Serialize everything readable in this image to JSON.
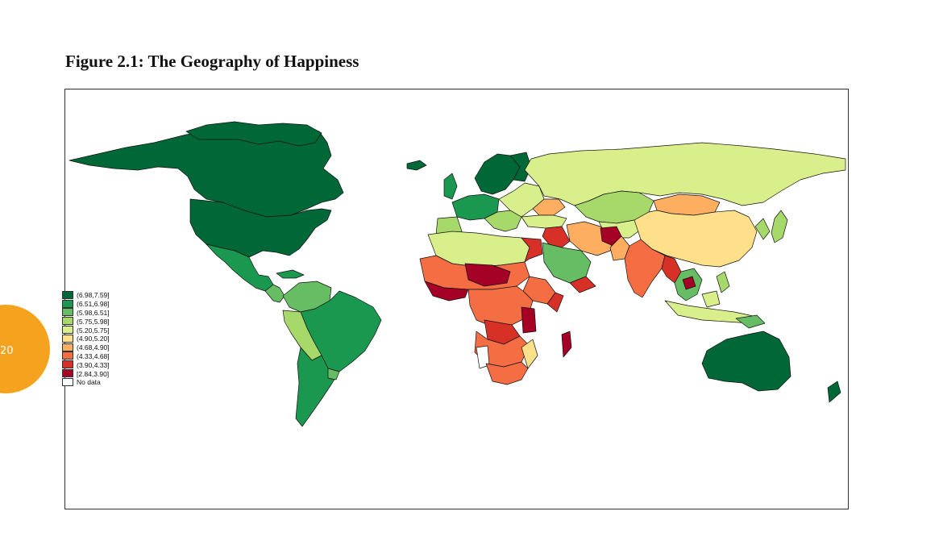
{
  "page": {
    "number": "20"
  },
  "figure": {
    "title": "Figure 2.1: The Geography of Happiness"
  },
  "legend": {
    "items": [
      {
        "label": "(6.98,7.59]",
        "color": "#006837"
      },
      {
        "label": "(6.51,6.98]",
        "color": "#1a9850"
      },
      {
        "label": "(5.98,6.51]",
        "color": "#66bd63"
      },
      {
        "label": "(5.75,5.98]",
        "color": "#a6d96a"
      },
      {
        "label": "(5.20,5.75]",
        "color": "#d9ef8b"
      },
      {
        "label": "(4.90,5.20]",
        "color": "#fee08b"
      },
      {
        "label": "(4.68,4.90]",
        "color": "#fdae61"
      },
      {
        "label": "(4.33,4.68]",
        "color": "#f46d43"
      },
      {
        "label": "(3.90,4.33]",
        "color": "#d73027"
      },
      {
        "label": "[2.84,3.90]",
        "color": "#a50026"
      },
      {
        "label": "No data",
        "color": "#ffffff"
      }
    ]
  }
}
